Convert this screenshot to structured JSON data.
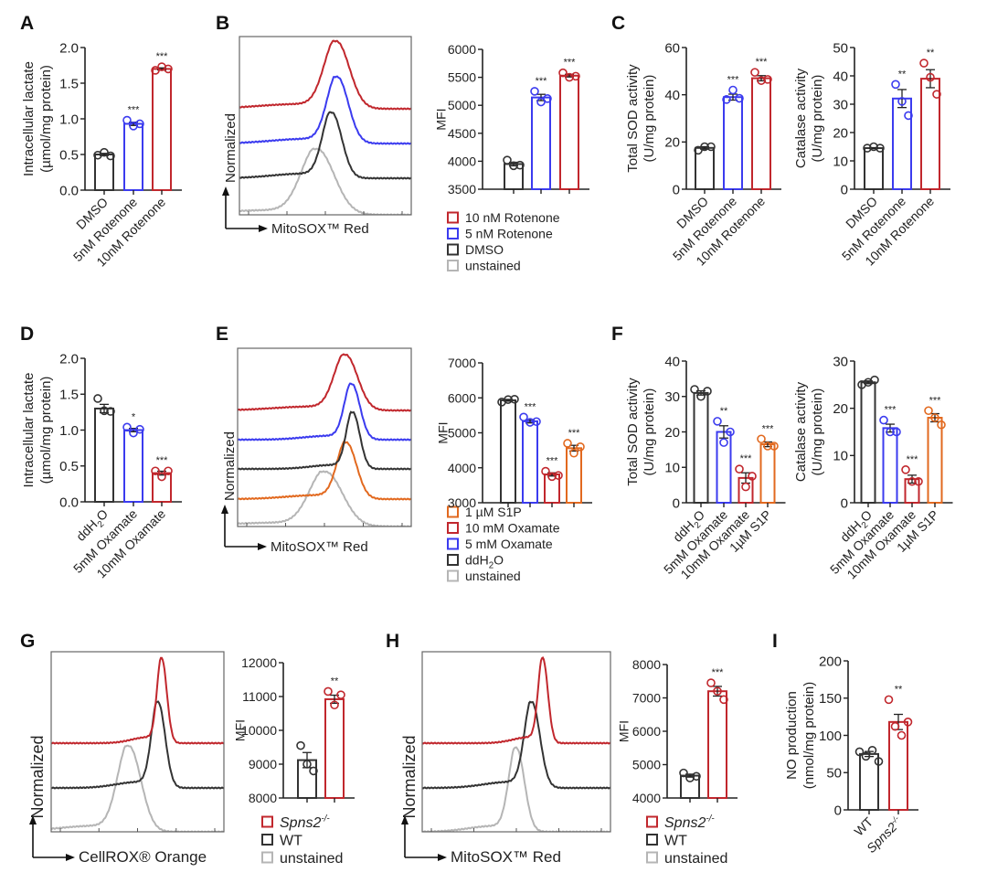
{
  "panels": [
    "A",
    "B",
    "C",
    "D",
    "E",
    "F",
    "G",
    "H",
    "I"
  ],
  "colors": {
    "black": "#333333",
    "blue": "#3b3bef",
    "red": "#c1272d",
    "orange": "#e2691f",
    "gray": "#b5b5b5"
  },
  "chart_data": [
    {
      "panel": "A",
      "type": "bar",
      "ylabel": [
        "Intracellular lactate",
        "(µmol/mg protein)"
      ],
      "ylim": [
        0,
        2
      ],
      "yticks": [
        "0.0",
        "0.5",
        "1.0",
        "1.5",
        "2.0"
      ],
      "categories": [
        "DMSO",
        "5nM Rotenone",
        "10nM Rotenone"
      ],
      "colors": [
        "#333333",
        "#3b3bef",
        "#c1272d"
      ],
      "values": [
        0.5,
        0.93,
        1.7
      ],
      "points": [
        [
          0.49,
          0.53,
          0.48
        ],
        [
          0.98,
          0.9,
          0.93
        ],
        [
          1.68,
          1.73,
          1.7
        ]
      ],
      "significance": [
        "",
        "***",
        "***"
      ]
    },
    {
      "panel": "B",
      "type": "histogram",
      "xlabel": "MitoSOX™ Red",
      "ylabel": "Normalized",
      "series": [
        {
          "name": "10 nM Rotenone",
          "color": "#c1272d"
        },
        {
          "name": "5 nM Rotenone",
          "color": "#3b3bef"
        },
        {
          "name": "DMSO",
          "color": "#333333"
        },
        {
          "name": "unstained",
          "color": "#b5b5b5"
        }
      ]
    },
    {
      "panel": "B",
      "type": "bar",
      "ylabel": [
        "MFI"
      ],
      "ylim": [
        3500,
        6000
      ],
      "yticks": [
        "3500",
        "4000",
        "4500",
        "5000",
        "5500",
        "6000"
      ],
      "categories": [
        "DMSO",
        "5 nM Rotenone",
        "10 nM Rotenone"
      ],
      "show_categories": false,
      "colors": [
        "#333333",
        "#3b3bef",
        "#c1272d"
      ],
      "values": [
        3950,
        5140,
        5530
      ],
      "points": [
        [
          4020,
          3920,
          3930
        ],
        [
          5250,
          5060,
          5120
        ],
        [
          5580,
          5500,
          5520
        ]
      ],
      "significance": [
        "",
        "***",
        "***"
      ]
    },
    {
      "panel": "C",
      "type": "bar",
      "ylabel": [
        "Total SOD activity",
        "(U/mg protein)"
      ],
      "ylim": [
        0,
        60
      ],
      "yticks": [
        "0",
        "20",
        "40",
        "60"
      ],
      "categories": [
        "DMSO",
        "5nM Rotenone",
        "10nM Rotenone"
      ],
      "colors": [
        "#333333",
        "#3b3bef",
        "#c1272d"
      ],
      "values": [
        17.5,
        39,
        47
      ],
      "points": [
        [
          16.5,
          18,
          18
        ],
        [
          38,
          42,
          38.5
        ],
        [
          49.5,
          46,
          46.5
        ]
      ],
      "significance": [
        "",
        "***",
        "***"
      ]
    },
    {
      "panel": "C",
      "type": "bar",
      "ylabel": [
        "Catalase activity",
        "(U/mg protein)"
      ],
      "ylim": [
        0,
        50
      ],
      "yticks": [
        "0",
        "10",
        "20",
        "30",
        "40",
        "50"
      ],
      "categories": [
        "DMSO",
        "5nM Rotenone",
        "10nM Rotenone"
      ],
      "colors": [
        "#333333",
        "#3b3bef",
        "#c1272d"
      ],
      "values": [
        14.5,
        32,
        39
      ],
      "points": [
        [
          14.5,
          15,
          14.5
        ],
        [
          37,
          31,
          26
        ],
        [
          44.5,
          39.5,
          33.5
        ]
      ],
      "significance": [
        "",
        "**",
        "**"
      ]
    },
    {
      "panel": "D",
      "type": "bar",
      "ylabel": [
        "Intracellular lactate",
        "(µmol/mg protein)"
      ],
      "ylim": [
        0,
        2
      ],
      "yticks": [
        "0.0",
        "0.5",
        "1.0",
        "1.5",
        "2.0"
      ],
      "categories": [
        "ddH2O",
        "5mM Oxamate",
        "10mM Oxamate"
      ],
      "colors": [
        "#333333",
        "#3b3bef",
        "#c1272d"
      ],
      "values": [
        1.3,
        1.0,
        0.4
      ],
      "points": [
        [
          1.44,
          1.27,
          1.26
        ],
        [
          1.04,
          0.96,
          1.01
        ],
        [
          0.43,
          0.35,
          0.43
        ]
      ],
      "significance": [
        "",
        "*",
        "***"
      ]
    },
    {
      "panel": "E",
      "type": "histogram",
      "xlabel": "MitoSOX™ Red",
      "ylabel": "Normalized",
      "series": [
        {
          "name": "1 µM S1P",
          "color": "#e2691f"
        },
        {
          "name": "10 mM Oxamate",
          "color": "#c1272d"
        },
        {
          "name": "5 mM Oxamate",
          "color": "#3b3bef"
        },
        {
          "name": "ddH2O",
          "color": "#333333"
        },
        {
          "name": "unstained",
          "color": "#b5b5b5"
        }
      ]
    },
    {
      "panel": "E",
      "type": "bar",
      "ylabel": [
        "MFI"
      ],
      "ylim": [
        3000,
        7000
      ],
      "yticks": [
        "3000",
        "4000",
        "5000",
        "6000",
        "7000"
      ],
      "categories": [
        "ddH2O",
        "5 mM Oxamate",
        "10 mM Oxamate",
        "1 µM S1P"
      ],
      "show_categories": false,
      "colors": [
        "#333333",
        "#3b3bef",
        "#c1272d",
        "#e2691f"
      ],
      "values": [
        5930,
        5330,
        3810,
        4560
      ],
      "points": [
        [
          5880,
          5950,
          5960
        ],
        [
          5450,
          5300,
          5320
        ],
        [
          3900,
          3750,
          3780
        ],
        [
          4700,
          4420,
          4600
        ]
      ],
      "significance": [
        "",
        "***",
        "***",
        "***"
      ]
    },
    {
      "panel": "F",
      "type": "bar",
      "ylabel": [
        "Total SOD activity",
        "(U/mg protein)"
      ],
      "ylim": [
        0,
        40
      ],
      "yticks": [
        "0",
        "10",
        "20",
        "30",
        "40"
      ],
      "categories": [
        "ddH2O",
        "5mM Oxamate",
        "10mM Oxamate",
        "1µM S1P"
      ],
      "colors": [
        "#333333",
        "#3b3bef",
        "#c1272d",
        "#e2691f"
      ],
      "values": [
        31,
        20,
        7,
        16.5
      ],
      "points": [
        [
          32,
          30,
          31.5
        ],
        [
          23,
          17,
          20
        ],
        [
          9.5,
          4.5,
          7.5
        ],
        [
          18,
          16,
          16
        ]
      ],
      "significance": [
        "",
        "**",
        "***",
        "***"
      ]
    },
    {
      "panel": "F",
      "type": "bar",
      "ylabel": [
        "Catalase activity",
        "(U/mg protein)"
      ],
      "ylim": [
        0,
        30
      ],
      "yticks": [
        "0",
        "10",
        "20",
        "30"
      ],
      "categories": [
        "ddH2O",
        "5mM Oxamate",
        "10mM Oxamate",
        "1µM S1P"
      ],
      "colors": [
        "#333333",
        "#3b3bef",
        "#c1272d",
        "#e2691f"
      ],
      "values": [
        25.5,
        15.8,
        5,
        18
      ],
      "points": [
        [
          25,
          25.5,
          26
        ],
        [
          17.5,
          15,
          15
        ],
        [
          7,
          4.5,
          4.5
        ],
        [
          19.5,
          18,
          16.5
        ]
      ],
      "significance": [
        "",
        "***",
        "***",
        "***"
      ]
    },
    {
      "panel": "G",
      "type": "histogram",
      "xlabel": "CellROX® Orange",
      "ylabel": "Normalized",
      "series": [
        {
          "name": "Spns2-/-",
          "color": "#c1272d"
        },
        {
          "name": "WT",
          "color": "#333333"
        },
        {
          "name": "unstained",
          "color": "#b5b5b5"
        }
      ]
    },
    {
      "panel": "G",
      "type": "bar",
      "ylabel": [
        "MFI"
      ],
      "ylim": [
        8000,
        12000
      ],
      "yticks": [
        "8000",
        "9000",
        "10000",
        "11000",
        "12000"
      ],
      "categories": [
        "WT",
        "Spns2-/-"
      ],
      "show_categories": false,
      "colors": [
        "#333333",
        "#c1272d"
      ],
      "values": [
        9120,
        10920
      ],
      "points": [
        [
          9550,
          9000,
          8800
        ],
        [
          11150,
          10750,
          11050
        ]
      ],
      "significance": [
        "",
        "**"
      ]
    },
    {
      "panel": "H",
      "type": "histogram",
      "xlabel": "MitoSOX™ Red",
      "ylabel": "Normalized",
      "series": [
        {
          "name": "Spns2-/-",
          "color": "#c1272d"
        },
        {
          "name": "WT",
          "color": "#333333"
        },
        {
          "name": "unstained",
          "color": "#b5b5b5"
        }
      ]
    },
    {
      "panel": "H",
      "type": "bar",
      "ylabel": [
        "MFI"
      ],
      "ylim": [
        4000,
        8000
      ],
      "yticks": [
        "4000",
        "5000",
        "6000",
        "7000",
        "8000"
      ],
      "categories": [
        "WT",
        "Spns2-/-"
      ],
      "show_categories": false,
      "colors": [
        "#333333",
        "#c1272d"
      ],
      "values": [
        4670,
        7200
      ],
      "points": [
        [
          4750,
          4600,
          4650
        ],
        [
          7450,
          7200,
          6950
        ]
      ],
      "significance": [
        "",
        "***"
      ]
    },
    {
      "panel": "I",
      "type": "bar",
      "ylabel": [
        "NO production",
        "(nmol/mg protein)"
      ],
      "ylim": [
        0,
        200
      ],
      "yticks": [
        "0",
        "50",
        "100",
        "150",
        "200"
      ],
      "categories": [
        "WT",
        "Spns2-/-"
      ],
      "colors": [
        "#333333",
        "#c1272d"
      ],
      "values": [
        75,
        118
      ],
      "points": [
        [
          78,
          72,
          80,
          65
        ],
        [
          148,
          112,
          100,
          118
        ]
      ],
      "significance": [
        "",
        "**"
      ]
    }
  ]
}
